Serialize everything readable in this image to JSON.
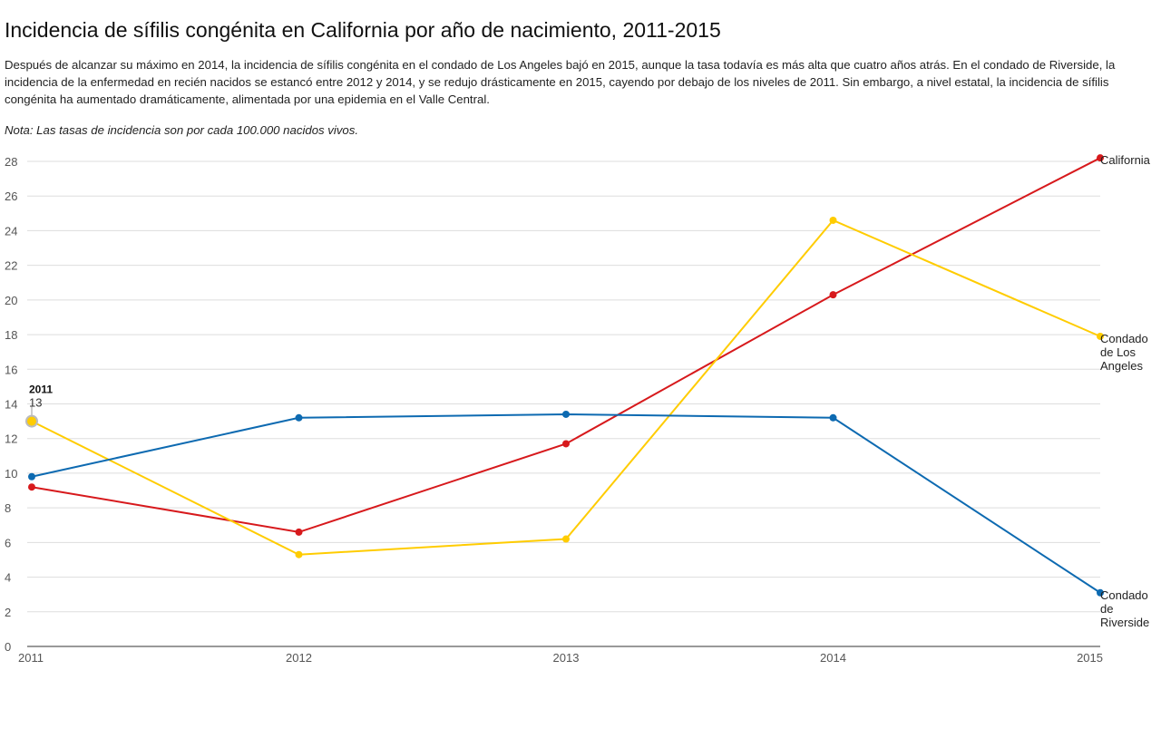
{
  "header": {
    "title": "Incidencia de sífilis congénita en California por año de nacimiento, 2011-2015",
    "description": "Después de alcanzar su máximo en 2014, la incidencia de sífilis congénita en el condado de Los Angeles bajó en 2015, aunque la tasa todavía es más alta que cuatro años atrás. En el condado de Riverside, la incidencia de la enfermedad en recién nacidos se estancó entre 2012 y 2014, y se redujo drásticamente en 2015, cayendo por debajo de los niveles de 2011. Sin embargo, a nivel estatal, la incidencia de sífilis congénita ha aumentado dramáticamente, alimentada por una epidemia en el Valle Central.",
    "note": "Nota: Las tasas de incidencia son por cada 100.000 nacidos vivos."
  },
  "chart_data": {
    "type": "line",
    "categories": [
      "2011",
      "2012",
      "2013",
      "2014",
      "2015"
    ],
    "ylim": [
      0,
      28
    ],
    "yticks": [
      0,
      2,
      4,
      6,
      8,
      10,
      12,
      14,
      16,
      18,
      20,
      22,
      24,
      26,
      28
    ],
    "grid": true,
    "legend": "direct labels at line ends (right)",
    "series": [
      {
        "name": "California",
        "color": "#d7191c",
        "values": [
          9.2,
          6.6,
          11.7,
          20.3,
          28.2
        ]
      },
      {
        "name": "Condado de Los Angeles",
        "color": "#ffcc00",
        "values": [
          13,
          5.3,
          6.2,
          24.6,
          17.9
        ]
      },
      {
        "name": "Condado de Riverside",
        "color": "#0d6ab1",
        "values": [
          9.8,
          13.2,
          13.4,
          13.2,
          3.1
        ]
      }
    ],
    "tooltip": {
      "series_index": 1,
      "point_index": 0,
      "category": "2011",
      "value": "13"
    }
  }
}
